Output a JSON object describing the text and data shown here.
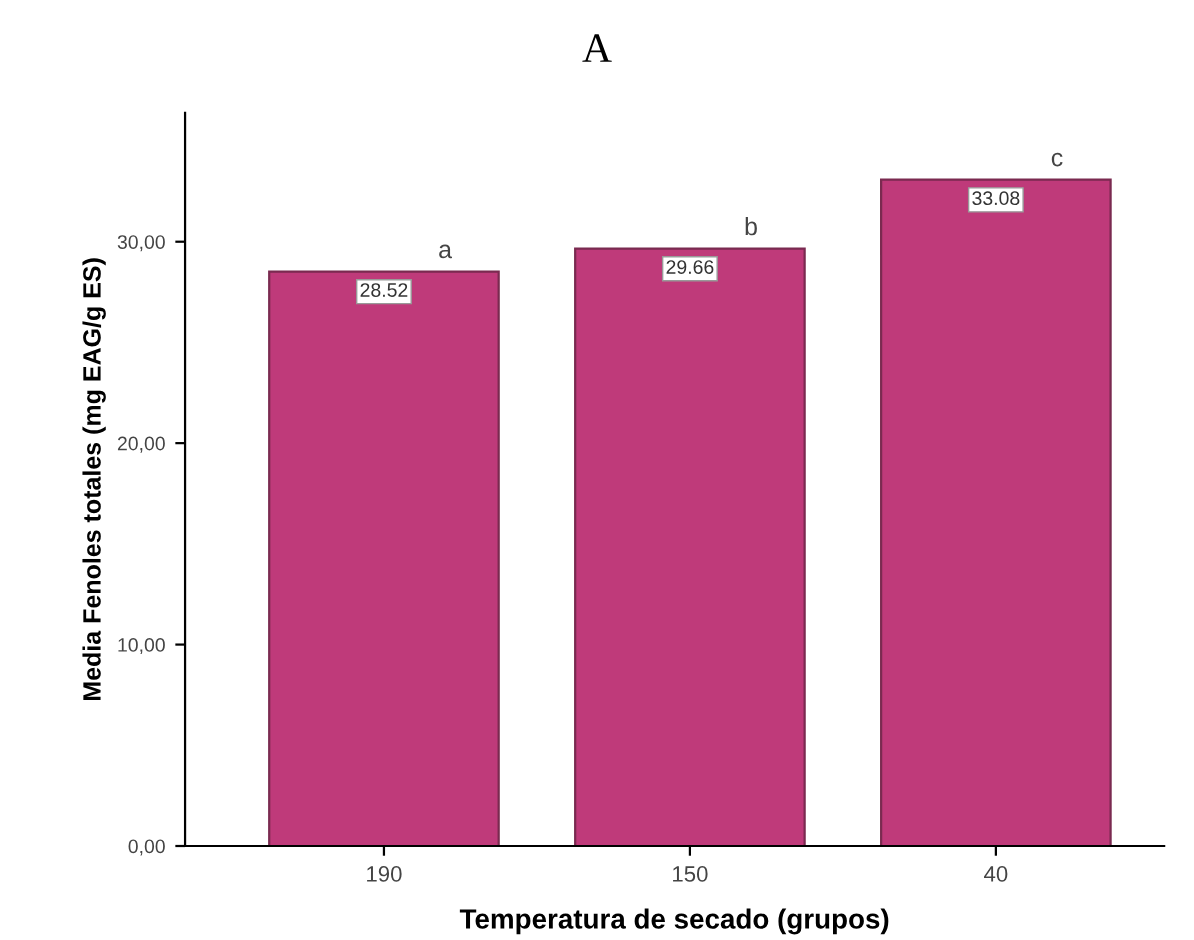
{
  "chart_data": {
    "type": "bar",
    "title": "A",
    "xlabel": "Temperatura de secado (grupos)",
    "ylabel": "Media Fenoles totales (mg EAG/g ES)",
    "categories": [
      "190",
      "150",
      "40"
    ],
    "values": [
      28.52,
      29.66,
      33.08
    ],
    "color": "#bf3a7a",
    "data_labels": true,
    "ylim": [
      0,
      36.4
    ],
    "yticks": [
      {
        "value": 0,
        "label": "0,00"
      },
      {
        "value": 10,
        "label": "10,00"
      },
      {
        "value": 20,
        "label": "20,00"
      },
      {
        "value": 30,
        "label": "30,00"
      }
    ],
    "grid": false,
    "legend": false,
    "annotations": [
      {
        "text": "a",
        "x": "190",
        "y": 28.52
      },
      {
        "text": "b",
        "x": "150",
        "y": 29.66
      },
      {
        "text": "c",
        "x": "40",
        "y": 33.08
      }
    ]
  }
}
